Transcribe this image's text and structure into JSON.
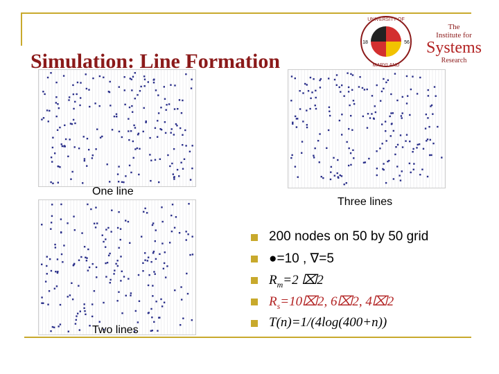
{
  "header": {
    "title": "Simulation: Line Formation"
  },
  "logos": {
    "university": {
      "top": "UNIVERSITY OF",
      "bottom": "MARYLAND",
      "left_year": "18",
      "right_year": "56"
    },
    "institute": {
      "line1": "The",
      "line2": "Institute for",
      "line3": "Systems",
      "line4": "Research"
    }
  },
  "figures": [
    {
      "caption": "One line"
    },
    {
      "caption": "Three lines"
    },
    {
      "caption": "Two lines"
    }
  ],
  "bullets": [
    {
      "text": "200 nodes on 50 by 50 grid"
    },
    {
      "text": "●=10 , ∇=5"
    },
    {
      "main": "R",
      "sub": "m",
      "rest": "=2 ⌧2"
    },
    {
      "main": "R",
      "sub": "s",
      "rest": "=10⌧2, 6⌧2, 4⌧2"
    },
    {
      "text": "T(n)=1/(4log(400+n))"
    }
  ]
}
